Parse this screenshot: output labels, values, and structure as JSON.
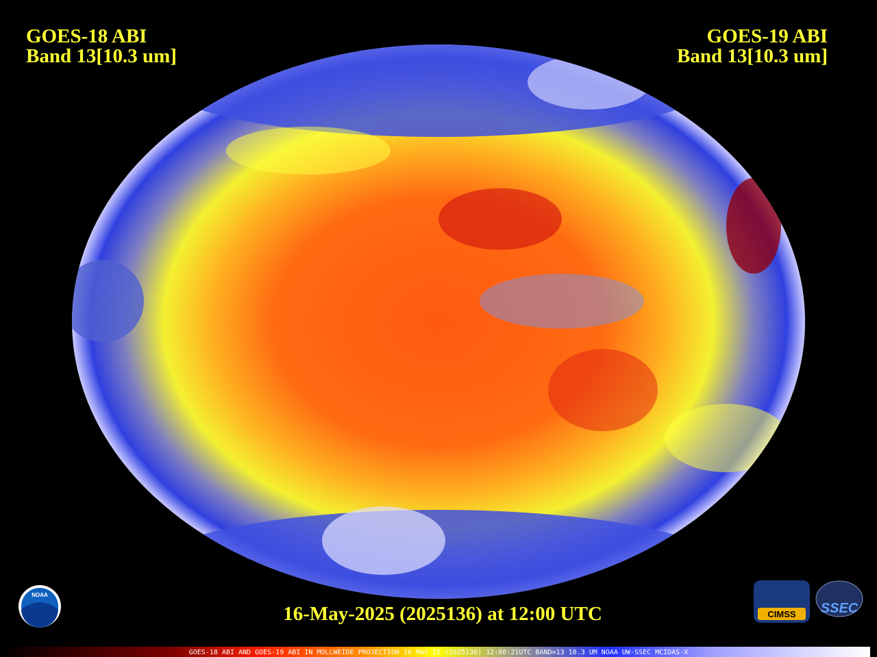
{
  "header": {
    "left": {
      "line1": "GOES-18 ABI",
      "line2": "Band 13[10.3 um]"
    },
    "right": {
      "line1": "GOES-19 ABI",
      "line2": "Band 13[10.3 um]"
    }
  },
  "timestamp": "16-May-2025 (2025136) at 12:00 UTC",
  "caption": "GOES-18 ABI AND GOES-19 ABI IN MOLLWEIDE PROJECTION 16 MAY 25 (2025136) 12:00:21UTC BAND=13 10.3 UM NOAA UW-SSEC MCIDAS-X",
  "logos": {
    "noaa": "NOAA",
    "cimss": "CIMSS",
    "ssec": "SSEC"
  }
}
